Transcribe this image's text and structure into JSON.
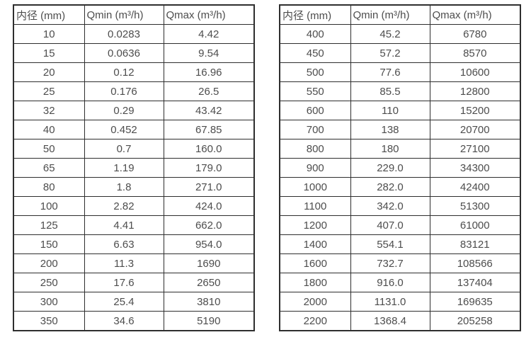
{
  "page": {
    "background_color": "#ffffff",
    "border_color": "#2e2e2e",
    "text_color": "#4d4d4d"
  },
  "tables": [
    {
      "name": "small-diameters",
      "headers": [
        "内径 (mm)",
        "Qmin (m³/h)",
        "Qmax (m³/h)"
      ],
      "rows": [
        [
          "10",
          "0.0283",
          "4.42"
        ],
        [
          "15",
          "0.0636",
          "9.54"
        ],
        [
          "20",
          "0.12",
          "16.96"
        ],
        [
          "25",
          "0.176",
          "26.5"
        ],
        [
          "32",
          "0.29",
          "43.42"
        ],
        [
          "40",
          "0.452",
          "67.85"
        ],
        [
          "50",
          "0.7",
          "160.0"
        ],
        [
          "65",
          "1.19",
          "179.0"
        ],
        [
          "80",
          "1.8",
          "271.0"
        ],
        [
          "100",
          "2.82",
          "424.0"
        ],
        [
          "125",
          "4.41",
          "662.0"
        ],
        [
          "150",
          "6.63",
          "954.0"
        ],
        [
          "200",
          "11.3",
          "1690"
        ],
        [
          "250",
          "17.6",
          "2650"
        ],
        [
          "300",
          "25.4",
          "3810"
        ],
        [
          "350",
          "34.6",
          "5190"
        ]
      ]
    },
    {
      "name": "large-diameters",
      "headers": [
        "内径 (mm)",
        "Qmin (m³/h)",
        "Qmax (m³/h)"
      ],
      "rows": [
        [
          "400",
          "45.2",
          "6780"
        ],
        [
          "450",
          "57.2",
          "8570"
        ],
        [
          "500",
          "77.6",
          "10600"
        ],
        [
          "550",
          "85.5",
          "12800"
        ],
        [
          "600",
          "110",
          "15200"
        ],
        [
          "700",
          "138",
          "20700"
        ],
        [
          "800",
          "180",
          "27100"
        ],
        [
          "900",
          "229.0",
          "34300"
        ],
        [
          "1000",
          "282.0",
          "42400"
        ],
        [
          "1100",
          "342.0",
          "51300"
        ],
        [
          "1200",
          "407.0",
          "61000"
        ],
        [
          "1400",
          "554.1",
          "83121"
        ],
        [
          "1600",
          "732.7",
          "108566"
        ],
        [
          "1800",
          "916.0",
          "137404"
        ],
        [
          "2000",
          "1131.0",
          "169635"
        ],
        [
          "2200",
          "1368.4",
          "205258"
        ]
      ]
    }
  ]
}
